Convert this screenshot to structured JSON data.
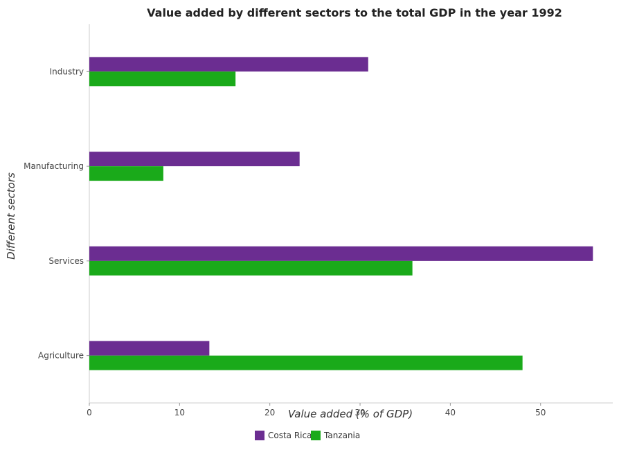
{
  "chart_data": {
    "type": "bar",
    "orientation": "horizontal",
    "title": "Value added by different sectors to the total GDP in the year 1992",
    "xlabel": "Value added (% of GDP)",
    "ylabel": "Different sectors",
    "categories": [
      "Industry",
      "Manufacturing",
      "Services",
      "Agriculture"
    ],
    "series": [
      {
        "name": "Costa Rica",
        "color": "#6b2d91",
        "values": [
          30.9,
          23.3,
          55.8,
          13.3
        ]
      },
      {
        "name": "Tanzania",
        "color": "#1aaa1a",
        "values": [
          16.2,
          8.2,
          35.8,
          48.0
        ]
      }
    ],
    "xlim": [
      0,
      58
    ],
    "xticks": [
      0,
      10,
      20,
      30,
      40,
      50
    ],
    "grid": false,
    "legend_position": "bottom-center"
  }
}
